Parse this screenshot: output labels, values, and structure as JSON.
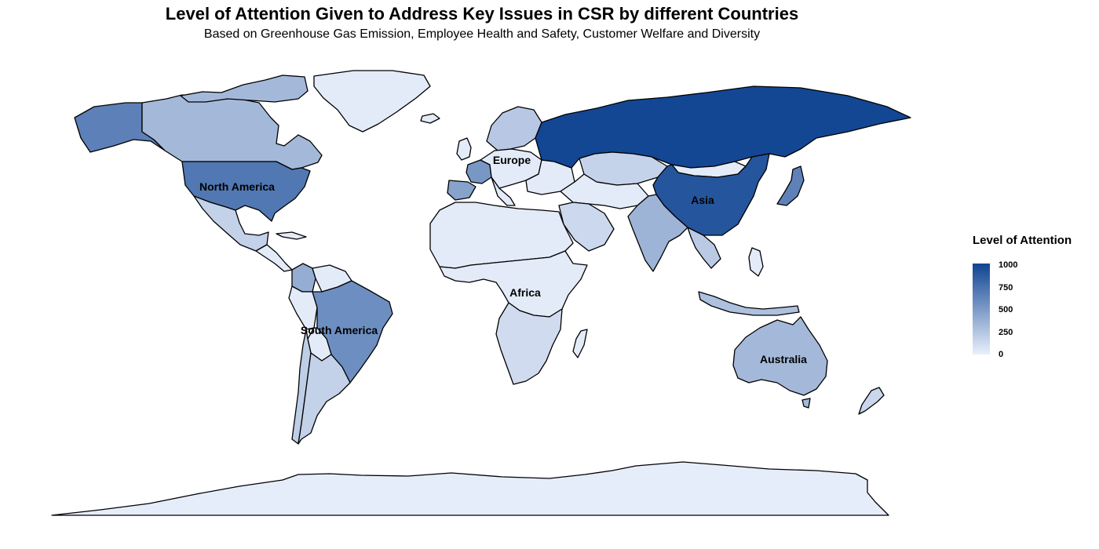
{
  "title": "Level of Attention Given to Address Key Issues in CSR by different Countries",
  "subtitle": "Based on Greenhouse Gas Emission, Employee Health and Safety, Customer Welfare and Diversity",
  "legend": {
    "title": "Level of Attention",
    "ticks": [
      "1000",
      "750",
      "500",
      "250",
      "0"
    ],
    "min": 0,
    "max": 1000,
    "color_low": "#eaf0fc",
    "color_high": "#0f4492"
  },
  "regions": [
    {
      "id": "north-america",
      "label": "North America"
    },
    {
      "id": "europe",
      "label": "Europe"
    },
    {
      "id": "asia",
      "label": "Asia"
    },
    {
      "id": "africa",
      "label": "Africa"
    },
    {
      "id": "south-america",
      "label": "South America"
    },
    {
      "id": "australia",
      "label": "Australia"
    }
  ],
  "chart_data": {
    "type": "choropleth",
    "value_field": "Level of Attention",
    "countries": [
      {
        "name": "Russia",
        "value": 980
      },
      {
        "name": "China",
        "value": 900
      },
      {
        "name": "United States",
        "value": 700
      },
      {
        "name": "Alaska",
        "value": 650
      },
      {
        "name": "Brazil",
        "value": 570
      },
      {
        "name": "France",
        "value": 520
      },
      {
        "name": "Spain",
        "value": 450
      },
      {
        "name": "Japan",
        "value": 640
      },
      {
        "name": "Canada",
        "value": 320
      },
      {
        "name": "India",
        "value": 350
      },
      {
        "name": "Australia",
        "value": 320
      },
      {
        "name": "Colombia",
        "value": 390
      },
      {
        "name": "Mexico",
        "value": 180
      },
      {
        "name": "Argentina",
        "value": 180
      },
      {
        "name": "Chile",
        "value": 200
      },
      {
        "name": "Kazakhstan",
        "value": 170
      },
      {
        "name": "Saudi Arabia",
        "value": 140
      },
      {
        "name": "Indonesia",
        "value": 280
      },
      {
        "name": "Thailand",
        "value": 220
      },
      {
        "name": "South Africa",
        "value": 120
      },
      {
        "name": "Nordics",
        "value": 230
      },
      {
        "name": "Greenland",
        "value": 30
      },
      {
        "name": "Mongolia",
        "value": 30
      },
      {
        "name": "Rest of Africa",
        "value": 30
      },
      {
        "name": "Antarctica",
        "value": 20
      },
      {
        "name": "New Zealand",
        "value": 150
      }
    ]
  }
}
